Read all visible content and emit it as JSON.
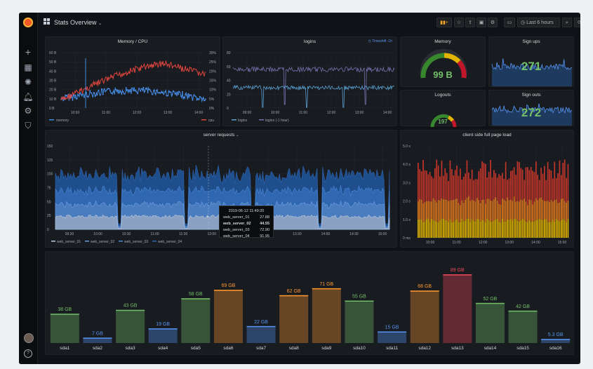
{
  "header": {
    "title": "Stats Overview",
    "time_range": "Last 6 hours"
  },
  "panels": {
    "memory_cpu": {
      "title": "Memory / CPU",
      "y_left": [
        "60 B",
        "50 B",
        "40 B",
        "30 B",
        "20 B",
        "10 B",
        "0 B"
      ],
      "y_right": [
        "30%",
        "25%",
        "20%",
        "15%",
        "10%",
        "5%",
        "0%"
      ],
      "x_ticks": [
        "10:00",
        "11:00",
        "12:00",
        "13:00",
        "14:00"
      ],
      "legend_memory": "memory",
      "legend_cpu": "cpu"
    },
    "logins": {
      "title": "logins",
      "badge": "Timeshift -1h",
      "y_ticks": [
        "80",
        "60",
        "40",
        "20",
        "0"
      ],
      "x_ticks": [
        "10:00",
        "11:00",
        "12:00",
        "13:00",
        "14:00"
      ],
      "x_first": "09:00",
      "legend_a": "logins",
      "legend_b": "logins (-1 hour)"
    },
    "memory_gauge": {
      "title": "Memory",
      "value": "99 B"
    },
    "logouts": {
      "title": "Logouts",
      "value": "197"
    },
    "signups": {
      "title": "Sign ups",
      "value": "271"
    },
    "signouts": {
      "title": "Sign outs",
      "value": "272"
    },
    "server_requests": {
      "title": "server requests",
      "y_ticks": [
        "150",
        "125",
        "100",
        "75",
        "50",
        "25",
        "0"
      ],
      "x_ticks": [
        "09:30",
        "10:00",
        "10:30",
        "11:00",
        "11:30",
        "12:00",
        "12:30",
        "13:00",
        "13:30",
        "14:00",
        "14:30",
        "15:00"
      ],
      "legend": [
        "web_server_01",
        "web_server_02",
        "web_server_03",
        "web_server_04"
      ],
      "tooltip": {
        "time": "2019-06-12 11:49:20",
        "rows": [
          {
            "name": "web_server_01",
            "value": "27.88"
          },
          {
            "name": "web_server_02",
            "value": "44.55"
          },
          {
            "name": "web_server_03",
            "value": "72.90"
          },
          {
            "name": "web_server_04",
            "value": "91.95"
          }
        ]
      }
    },
    "page_load": {
      "title": "client side full page load",
      "y_ticks": [
        "5.0 s",
        "4.0 s",
        "3.0 s",
        "2.0 s",
        "1.0 s",
        "0 ms"
      ],
      "x_ticks": [
        "10:00",
        "11:00",
        "12:00",
        "13:00",
        "14:00",
        "15:00"
      ]
    }
  },
  "chart_data": {
    "type": "bar",
    "categories": [
      "sda1",
      "sda2",
      "sda3",
      "sda4",
      "sda5",
      "sda6",
      "sda7",
      "sda8",
      "sda9",
      "sda10",
      "sda11",
      "sda12",
      "sda13",
      "sda14",
      "sda15",
      "sda16"
    ],
    "values": [
      38,
      7,
      43,
      19,
      58,
      69,
      22,
      62,
      71,
      55,
      15,
      68,
      89,
      52,
      42,
      5.3
    ],
    "labels": [
      "38 GB",
      "7 GB",
      "43 GB",
      "19 GB",
      "58 GB",
      "69 GB",
      "22 GB",
      "62 GB",
      "71 GB",
      "55 GB",
      "15 GB",
      "68 GB",
      "89 GB",
      "52 GB",
      "42 GB",
      "5.3 GB"
    ],
    "colors": [
      "#73bf69",
      "#5794f2",
      "#73bf69",
      "#5794f2",
      "#73bf69",
      "#ff9830",
      "#5794f2",
      "#ff9830",
      "#ff9830",
      "#73bf69",
      "#5794f2",
      "#ff9830",
      "#f2495c",
      "#73bf69",
      "#73bf69",
      "#5794f2"
    ],
    "ylim": [
      0,
      100
    ]
  }
}
